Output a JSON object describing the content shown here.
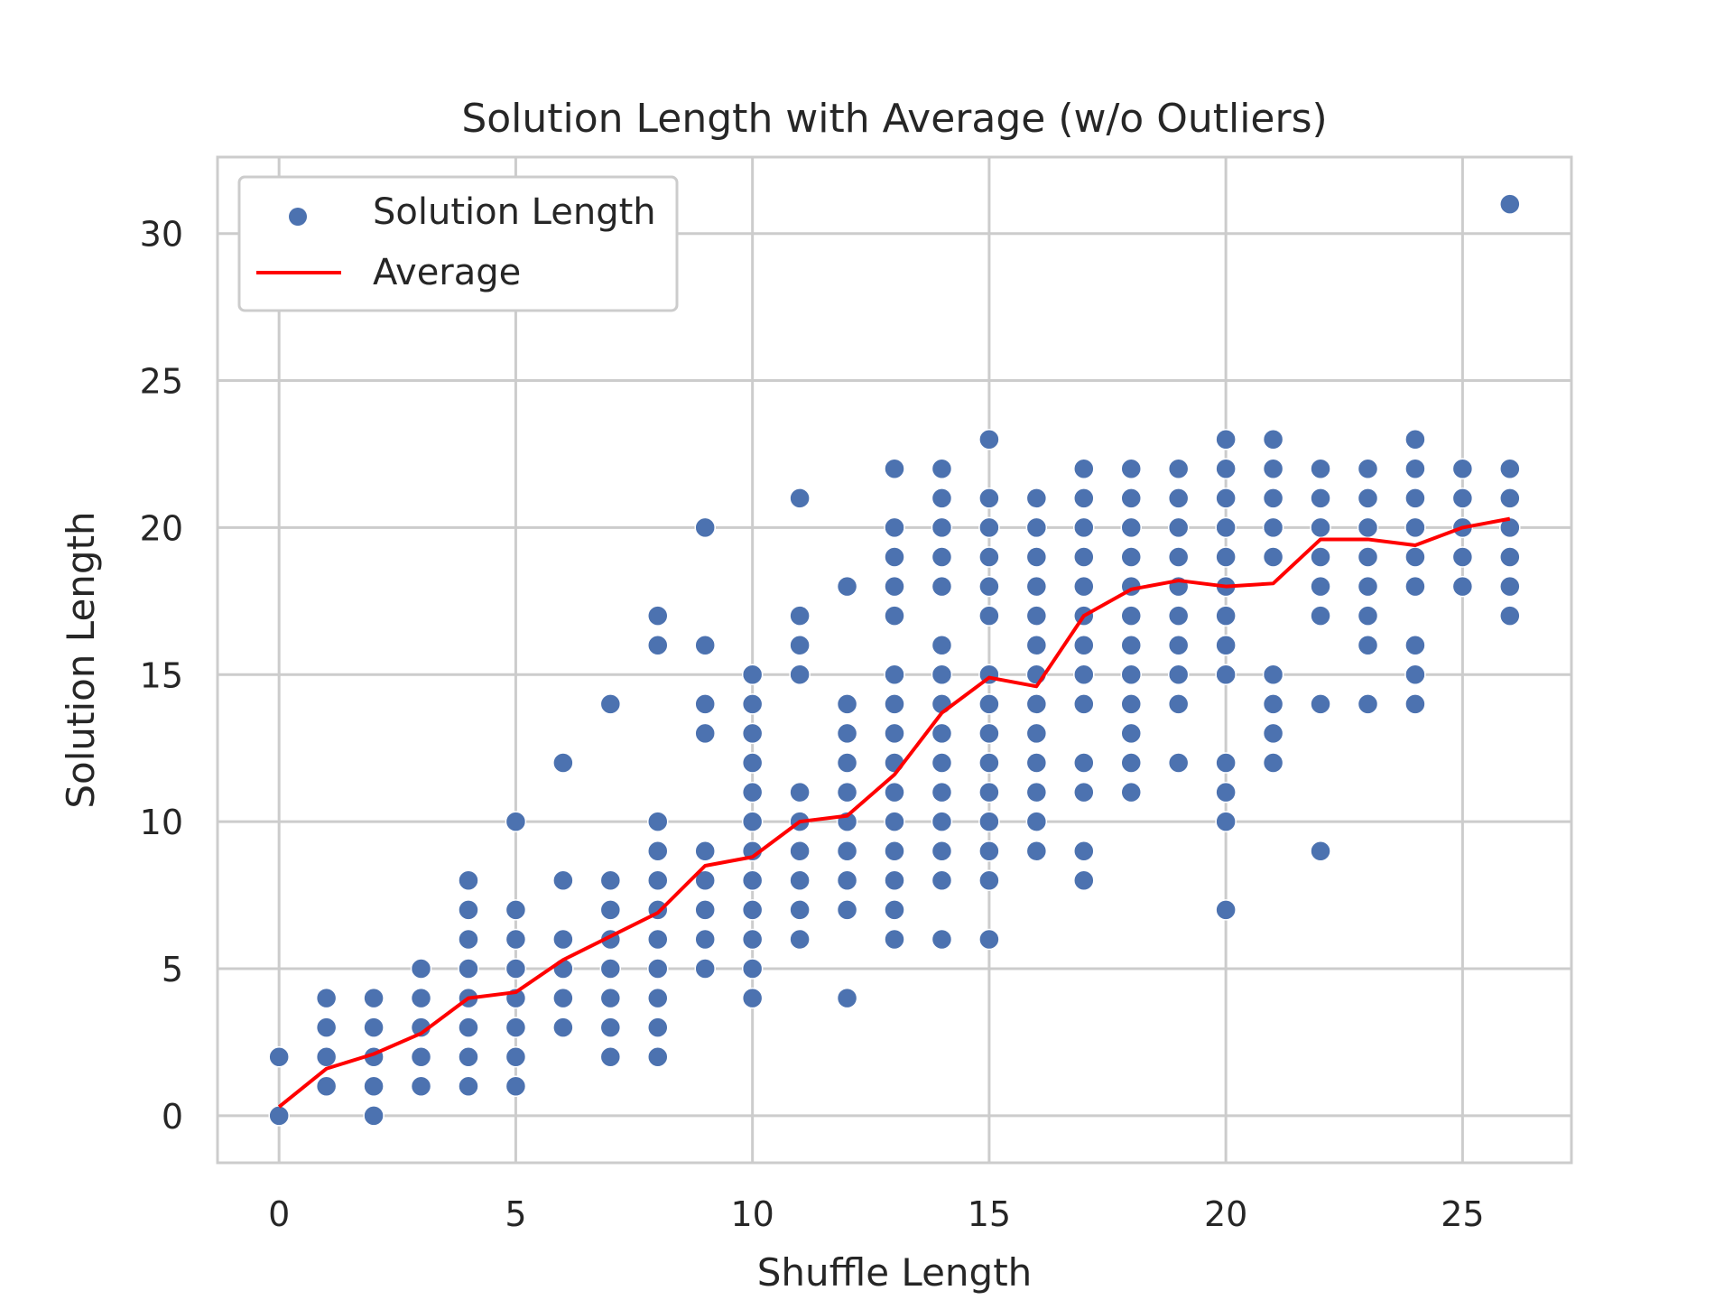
{
  "chart_data": {
    "type": "scatter",
    "title": "Solution Length with Average (w/o Outliers)",
    "xlabel": "Shuffle Length",
    "ylabel": "Solution Length",
    "xlim": [
      -1.3,
      27.3
    ],
    "ylim": [
      -1.6,
      32.6
    ],
    "xticks": [
      0,
      5,
      10,
      15,
      20,
      25
    ],
    "yticks": [
      0,
      5,
      10,
      15,
      20,
      25,
      30
    ],
    "grid": true,
    "legend_position": "top-left",
    "colors": {
      "scatter": "#4c72b0",
      "average": "#ff0000",
      "grid": "#cccccc",
      "background": "#ffffff"
    },
    "series": [
      {
        "name": "Solution Length",
        "kind": "scatter",
        "points": [
          [
            0,
            0
          ],
          [
            0,
            2
          ],
          [
            1,
            1
          ],
          [
            1,
            2
          ],
          [
            1,
            3
          ],
          [
            1,
            4
          ],
          [
            2,
            0
          ],
          [
            2,
            1
          ],
          [
            2,
            2
          ],
          [
            2,
            3
          ],
          [
            2,
            4
          ],
          [
            3,
            1
          ],
          [
            3,
            2
          ],
          [
            3,
            3
          ],
          [
            3,
            4
          ],
          [
            3,
            5
          ],
          [
            4,
            1
          ],
          [
            4,
            2
          ],
          [
            4,
            3
          ],
          [
            4,
            4
          ],
          [
            4,
            5
          ],
          [
            4,
            6
          ],
          [
            4,
            7
          ],
          [
            4,
            8
          ],
          [
            5,
            1
          ],
          [
            5,
            2
          ],
          [
            5,
            3
          ],
          [
            5,
            4
          ],
          [
            5,
            5
          ],
          [
            5,
            6
          ],
          [
            5,
            7
          ],
          [
            5,
            10
          ],
          [
            6,
            3
          ],
          [
            6,
            4
          ],
          [
            6,
            5
          ],
          [
            6,
            6
          ],
          [
            6,
            8
          ],
          [
            6,
            12
          ],
          [
            7,
            2
          ],
          [
            7,
            3
          ],
          [
            7,
            4
          ],
          [
            7,
            5
          ],
          [
            7,
            6
          ],
          [
            7,
            7
          ],
          [
            7,
            8
          ],
          [
            7,
            14
          ],
          [
            8,
            2
          ],
          [
            8,
            3
          ],
          [
            8,
            4
          ],
          [
            8,
            5
          ],
          [
            8,
            6
          ],
          [
            8,
            7
          ],
          [
            8,
            8
          ],
          [
            8,
            9
          ],
          [
            8,
            10
          ],
          [
            8,
            16
          ],
          [
            8,
            17
          ],
          [
            9,
            5
          ],
          [
            9,
            6
          ],
          [
            9,
            7
          ],
          [
            9,
            8
          ],
          [
            9,
            9
          ],
          [
            9,
            13
          ],
          [
            9,
            14
          ],
          [
            9,
            16
          ],
          [
            9,
            20
          ],
          [
            10,
            4
          ],
          [
            10,
            5
          ],
          [
            10,
            6
          ],
          [
            10,
            7
          ],
          [
            10,
            8
          ],
          [
            10,
            9
          ],
          [
            10,
            10
          ],
          [
            10,
            11
          ],
          [
            10,
            12
          ],
          [
            10,
            13
          ],
          [
            10,
            14
          ],
          [
            10,
            15
          ],
          [
            11,
            6
          ],
          [
            11,
            7
          ],
          [
            11,
            8
          ],
          [
            11,
            9
          ],
          [
            11,
            10
          ],
          [
            11,
            11
          ],
          [
            11,
            15
          ],
          [
            11,
            16
          ],
          [
            11,
            17
          ],
          [
            11,
            21
          ],
          [
            12,
            4
          ],
          [
            12,
            7
          ],
          [
            12,
            8
          ],
          [
            12,
            9
          ],
          [
            12,
            10
          ],
          [
            12,
            11
          ],
          [
            12,
            12
          ],
          [
            12,
            13
          ],
          [
            12,
            14
          ],
          [
            12,
            18
          ],
          [
            13,
            6
          ],
          [
            13,
            7
          ],
          [
            13,
            8
          ],
          [
            13,
            9
          ],
          [
            13,
            10
          ],
          [
            13,
            11
          ],
          [
            13,
            12
          ],
          [
            13,
            13
          ],
          [
            13,
            14
          ],
          [
            13,
            15
          ],
          [
            13,
            17
          ],
          [
            13,
            18
          ],
          [
            13,
            19
          ],
          [
            13,
            20
          ],
          [
            13,
            22
          ],
          [
            14,
            6
          ],
          [
            14,
            8
          ],
          [
            14,
            9
          ],
          [
            14,
            10
          ],
          [
            14,
            11
          ],
          [
            14,
            12
          ],
          [
            14,
            13
          ],
          [
            14,
            14
          ],
          [
            14,
            15
          ],
          [
            14,
            16
          ],
          [
            14,
            18
          ],
          [
            14,
            19
          ],
          [
            14,
            20
          ],
          [
            14,
            21
          ],
          [
            14,
            22
          ],
          [
            15,
            6
          ],
          [
            15,
            8
          ],
          [
            15,
            9
          ],
          [
            15,
            10
          ],
          [
            15,
            11
          ],
          [
            15,
            12
          ],
          [
            15,
            13
          ],
          [
            15,
            14
          ],
          [
            15,
            15
          ],
          [
            15,
            17
          ],
          [
            15,
            18
          ],
          [
            15,
            19
          ],
          [
            15,
            20
          ],
          [
            15,
            21
          ],
          [
            15,
            23
          ],
          [
            16,
            9
          ],
          [
            16,
            10
          ],
          [
            16,
            11
          ],
          [
            16,
            12
          ],
          [
            16,
            13
          ],
          [
            16,
            14
          ],
          [
            16,
            15
          ],
          [
            16,
            16
          ],
          [
            16,
            17
          ],
          [
            16,
            18
          ],
          [
            16,
            19
          ],
          [
            16,
            20
          ],
          [
            16,
            21
          ],
          [
            17,
            8
          ],
          [
            17,
            9
          ],
          [
            17,
            11
          ],
          [
            17,
            12
          ],
          [
            17,
            14
          ],
          [
            17,
            15
          ],
          [
            17,
            16
          ],
          [
            17,
            17
          ],
          [
            17,
            18
          ],
          [
            17,
            19
          ],
          [
            17,
            20
          ],
          [
            17,
            21
          ],
          [
            17,
            22
          ],
          [
            18,
            11
          ],
          [
            18,
            12
          ],
          [
            18,
            13
          ],
          [
            18,
            14
          ],
          [
            18,
            15
          ],
          [
            18,
            16
          ],
          [
            18,
            17
          ],
          [
            18,
            18
          ],
          [
            18,
            19
          ],
          [
            18,
            20
          ],
          [
            18,
            21
          ],
          [
            18,
            22
          ],
          [
            19,
            12
          ],
          [
            19,
            14
          ],
          [
            19,
            15
          ],
          [
            19,
            16
          ],
          [
            19,
            17
          ],
          [
            19,
            18
          ],
          [
            19,
            19
          ],
          [
            19,
            20
          ],
          [
            19,
            21
          ],
          [
            19,
            22
          ],
          [
            20,
            7
          ],
          [
            20,
            10
          ],
          [
            20,
            11
          ],
          [
            20,
            12
          ],
          [
            20,
            15
          ],
          [
            20,
            16
          ],
          [
            20,
            17
          ],
          [
            20,
            18
          ],
          [
            20,
            19
          ],
          [
            20,
            20
          ],
          [
            20,
            21
          ],
          [
            20,
            22
          ],
          [
            20,
            23
          ],
          [
            21,
            12
          ],
          [
            21,
            13
          ],
          [
            21,
            14
          ],
          [
            21,
            15
          ],
          [
            21,
            19
          ],
          [
            21,
            20
          ],
          [
            21,
            21
          ],
          [
            21,
            22
          ],
          [
            21,
            23
          ],
          [
            22,
            9
          ],
          [
            22,
            14
          ],
          [
            22,
            17
          ],
          [
            22,
            18
          ],
          [
            22,
            19
          ],
          [
            22,
            20
          ],
          [
            22,
            21
          ],
          [
            22,
            22
          ],
          [
            23,
            14
          ],
          [
            23,
            16
          ],
          [
            23,
            17
          ],
          [
            23,
            18
          ],
          [
            23,
            19
          ],
          [
            23,
            20
          ],
          [
            23,
            21
          ],
          [
            23,
            22
          ],
          [
            24,
            14
          ],
          [
            24,
            15
          ],
          [
            24,
            16
          ],
          [
            24,
            18
          ],
          [
            24,
            19
          ],
          [
            24,
            20
          ],
          [
            24,
            21
          ],
          [
            24,
            22
          ],
          [
            24,
            23
          ],
          [
            25,
            18
          ],
          [
            25,
            19
          ],
          [
            25,
            20
          ],
          [
            25,
            21
          ],
          [
            25,
            22
          ],
          [
            26,
            17
          ],
          [
            26,
            18
          ],
          [
            26,
            19
          ],
          [
            26,
            20
          ],
          [
            26,
            21
          ],
          [
            26,
            22
          ],
          [
            26,
            31
          ]
        ]
      },
      {
        "name": "Average",
        "kind": "line",
        "x": [
          0,
          1,
          2,
          3,
          4,
          5,
          6,
          7,
          8,
          9,
          10,
          11,
          12,
          13,
          14,
          15,
          16,
          17,
          18,
          19,
          20,
          21,
          22,
          23,
          24,
          25,
          26
        ],
        "y": [
          0.3,
          1.6,
          2.1,
          2.8,
          4.0,
          4.2,
          5.3,
          6.1,
          6.9,
          8.5,
          8.8,
          10.0,
          10.2,
          11.6,
          13.7,
          14.9,
          14.6,
          17.0,
          17.9,
          18.2,
          18.0,
          18.1,
          19.6,
          19.6,
          19.4,
          20.0,
          20.3
        ]
      }
    ]
  }
}
